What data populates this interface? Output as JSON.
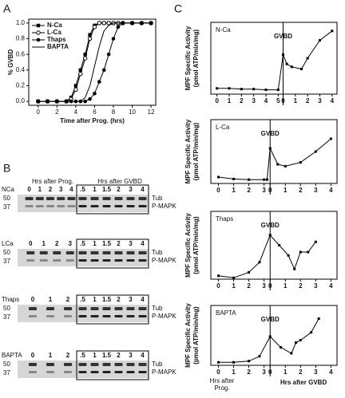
{
  "panels": [
    "A",
    "B",
    "C"
  ],
  "chart_data": [
    {
      "type": "line",
      "xlabel": "Time after Prog. (hrs)",
      "ylabel": "% GVBD",
      "legend": "upper left",
      "x": [
        0,
        1,
        2,
        3,
        3.5,
        4,
        4.5,
        5,
        5.5,
        6,
        6.5,
        7,
        7.5,
        8,
        8.5,
        9,
        10,
        11,
        12
      ],
      "series": [
        {
          "name": "N-Ca",
          "color": "#000000",
          "marker": "square",
          "values": [
            0,
            0,
            0,
            0,
            0.05,
            0.2,
            0.4,
            0.6,
            0.85,
            0.97,
            1,
            1,
            1,
            1,
            1,
            1,
            1,
            1,
            1
          ]
        },
        {
          "name": "L-Ca",
          "color": "#000000",
          "marker": "circle-open",
          "values": [
            0,
            0,
            0,
            0,
            0.03,
            0.15,
            0.35,
            0.55,
            0.8,
            0.95,
            1,
            1,
            1,
            1,
            1,
            1,
            1,
            1,
            1
          ]
        },
        {
          "name": "Thaps",
          "color": "#000000",
          "marker": "circle",
          "values": [
            0,
            0,
            0,
            0,
            0,
            0,
            0,
            0,
            0.03,
            0.1,
            0.25,
            0.4,
            0.6,
            0.8,
            0.95,
            1,
            1,
            1,
            1
          ]
        },
        {
          "name": "BAPTA",
          "color": "#000000",
          "marker": "none",
          "values": [
            0,
            0,
            0,
            0,
            0,
            0,
            0,
            0.05,
            0.2,
            0.45,
            0.7,
            0.9,
            0.97,
            1,
            1,
            1,
            1,
            1,
            1
          ]
        }
      ],
      "xlim": [
        -1,
        12.5
      ],
      "ylim": [
        -0.05,
        1.05
      ],
      "xticks": [
        0,
        2,
        4,
        6,
        8,
        10,
        12
      ],
      "yticks": [
        {
          "value": 0,
          "label": "0.0"
        },
        0.2,
        0.4,
        0.6,
        0.8,
        {
          "value": 1,
          "label": "1.0"
        }
      ]
    },
    {
      "type": "mpf",
      "title": "N-Ca",
      "annotation": "GVBD",
      "ylabel": [
        "MPF Specific Activity",
        "(pmol ATP/min/mg)"
      ],
      "x": [
        0,
        1,
        2,
        3,
        4,
        5,
        5.4,
        5.7,
        6.1,
        6.9,
        7.4,
        8.4,
        9.4
      ],
      "values": [
        8,
        8,
        7,
        7,
        6,
        6,
        55,
        42,
        38,
        35,
        50,
        75,
        88
      ],
      "xlim": [
        -0.5,
        9.8
      ],
      "ylim": [
        0,
        100
      ],
      "xticks": [
        0,
        1,
        2,
        3,
        4,
        5,
        {
          "value": 5.4,
          "label": "0"
        },
        {
          "value": 6.4,
          "label": "1"
        },
        {
          "value": 7.4,
          "label": "2"
        },
        {
          "value": 8.4,
          "label": "3"
        },
        {
          "value": 9.4,
          "label": "4"
        }
      ]
    },
    {
      "type": "mpf",
      "title": "L-Ca",
      "annotation": "GVBD",
      "ylabel": [
        "MPF Specific Activity",
        "(pmol ATP/min/mg)"
      ],
      "x": [
        0,
        1,
        2,
        3,
        3.2,
        3.4,
        3.9,
        4.4,
        5.4,
        6.4,
        7.4
      ],
      "values": [
        10,
        7,
        6,
        6,
        6,
        55,
        30,
        27,
        33,
        50,
        70
      ],
      "xlim": [
        -0.5,
        7.8
      ],
      "ylim": [
        0,
        100
      ],
      "xticks": [
        0,
        1,
        2,
        3,
        {
          "value": 3.4,
          "label": "0"
        },
        {
          "value": 4.4,
          "label": "1"
        },
        {
          "value": 5.4,
          "label": "2"
        },
        {
          "value": 6.4,
          "label": "3"
        },
        {
          "value": 7.4,
          "label": "4"
        }
      ]
    },
    {
      "type": "mpf",
      "title": "Thaps",
      "annotation": "GVBD",
      "ylabel": [
        "MPF Specific Activity",
        "(pmol ATP/min/mg)"
      ],
      "x": [
        0,
        1,
        2,
        2.7,
        3.4,
        4.0,
        4.6,
        5.0,
        5.4,
        5.9,
        6.4
      ],
      "values": [
        5,
        2,
        10,
        25,
        65,
        50,
        35,
        15,
        40,
        40,
        55
      ],
      "xlim": [
        -0.5,
        7.8
      ],
      "ylim": [
        0,
        100
      ],
      "xticks": [
        0,
        1,
        2,
        3,
        {
          "value": 3.4,
          "label": "0"
        },
        {
          "value": 4.4,
          "label": "1"
        },
        {
          "value": 5.4,
          "label": "2"
        },
        {
          "value": 6.4,
          "label": "3"
        },
        {
          "value": 7.4,
          "label": "4"
        }
      ]
    },
    {
      "type": "mpf",
      "title": "BAPTA",
      "annotation": "GVBD",
      "ylabel": [
        "MPF Specific Activity",
        "(pmol ATP/min/mg)"
      ],
      "x": [
        0,
        1,
        2,
        2.7,
        3.4,
        4.1,
        4.8,
        5.1,
        5.4,
        6.1,
        6.6
      ],
      "values": [
        5,
        5,
        7,
        15,
        48,
        30,
        20,
        38,
        42,
        55,
        78
      ],
      "xlim": [
        -0.5,
        7.8
      ],
      "ylim": [
        0,
        100
      ],
      "xticks": [
        0,
        1,
        2,
        3,
        {
          "value": 3.4,
          "label": "0"
        },
        {
          "value": 4.4,
          "label": "1"
        },
        {
          "value": 5.4,
          "label": "2"
        },
        {
          "value": 6.4,
          "label": "3"
        },
        {
          "value": 7.4,
          "label": "4"
        }
      ],
      "xlabels": [
        "Hrs after",
        "Prog.",
        "Hrs after GVBD"
      ]
    }
  ],
  "blots": {
    "headers": [
      "Hrs after Prog.",
      "Hrs after GVBD"
    ],
    "markers": [
      "50",
      "37"
    ],
    "bands": [
      "Tub",
      "P-MAPK"
    ],
    "rows": [
      {
        "name": "NCa",
        "prog": [
          "0",
          "1",
          "2",
          "3",
          "4"
        ],
        "gvbd": [
          ".5",
          "1",
          "1.5",
          "2",
          "3",
          "4"
        ]
      },
      {
        "name": "LCa",
        "prog": [
          "0",
          "1",
          "2",
          "3"
        ],
        "gvbd": [
          ".5",
          "1",
          "1.5",
          "2",
          "3",
          "4"
        ]
      },
      {
        "name": "Thaps",
        "prog": [
          "0",
          "1",
          "2"
        ],
        "gvbd": [
          ".5",
          "1",
          "1.5",
          "2",
          "3",
          "4"
        ]
      },
      {
        "name": "BAPTA",
        "prog": [
          "0",
          "1",
          "2"
        ],
        "gvbd": [
          ".5",
          "1",
          "1.5",
          "2",
          "3",
          "4"
        ]
      }
    ]
  }
}
